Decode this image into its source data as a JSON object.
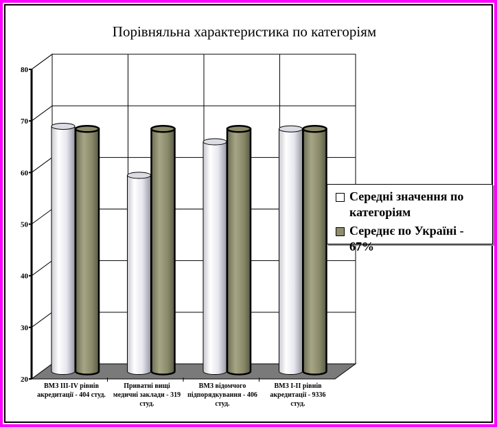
{
  "chart_data": {
    "type": "bar",
    "title": "Порівняльна характеристика по категоріям",
    "categories": [
      "ВМЗ III-IV рівнів акредитації - 404 студ.",
      "Приватні вищі медичні заклади - 319 студ.",
      "ВМЗ відомчого підпорядкування - 406 студ.",
      "ВМЗ I-II рівнів акредитації - 9336 студ."
    ],
    "series": [
      {
        "name": "Середні значення по категоріям",
        "values": [
          67.5,
          58,
          64.5,
          67
        ],
        "color": "#f2f2f2"
      },
      {
        "name": "Середнє по Україні - 67%",
        "values": [
          67,
          67,
          67,
          67
        ],
        "color": "#8f8f6f"
      }
    ],
    "ylim": [
      20,
      80
    ],
    "yticks": [
      20,
      30,
      40,
      50,
      60,
      70,
      80
    ],
    "grid": true,
    "legend_position": "right",
    "frame_color": "#ff00ff"
  }
}
